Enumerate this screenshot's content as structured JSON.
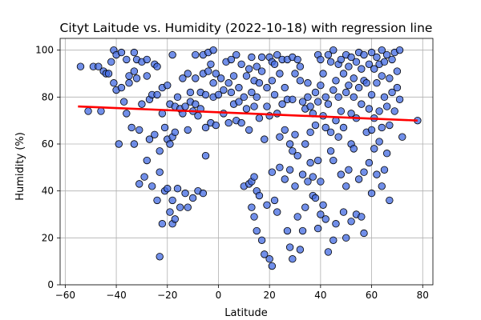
{
  "chart_data": {
    "type": "scatter",
    "title": "Cityt Laitude vs. Humidity (2022-10-18) with regression line",
    "xlabel": "Latitude",
    "ylabel": "Humidity (%)",
    "xlim": [
      -62,
      84
    ],
    "ylim": [
      0,
      105
    ],
    "xticks": [
      -60,
      -40,
      -20,
      0,
      20,
      40,
      60,
      80
    ],
    "yticks": [
      0,
      20,
      40,
      60,
      80,
      100
    ],
    "grid": true,
    "point_color": "#4169e1",
    "line_color": "#ff0000",
    "regression": {
      "x": [
        -55,
        78
      ],
      "y": [
        76,
        70
      ]
    },
    "points": [
      [
        -54,
        93
      ],
      [
        -51,
        74
      ],
      [
        -49,
        93
      ],
      [
        -47,
        93
      ],
      [
        -46,
        74
      ],
      [
        -45,
        91
      ],
      [
        -44,
        90
      ],
      [
        -43,
        90
      ],
      [
        -42,
        95
      ],
      [
        -41,
        86
      ],
      [
        -41,
        100
      ],
      [
        -40,
        98
      ],
      [
        -40,
        83
      ],
      [
        -39,
        60
      ],
      [
        -38,
        99
      ],
      [
        -38,
        84
      ],
      [
        -37,
        78
      ],
      [
        -36,
        96
      ],
      [
        -36,
        73
      ],
      [
        -35,
        89
      ],
      [
        -35,
        86
      ],
      [
        -34,
        67
      ],
      [
        -33,
        99
      ],
      [
        -33,
        91
      ],
      [
        -33,
        60
      ],
      [
        -32,
        96
      ],
      [
        -32,
        88
      ],
      [
        -31,
        66
      ],
      [
        -31,
        43
      ],
      [
        -30,
        95
      ],
      [
        -30,
        77
      ],
      [
        -29,
        46
      ],
      [
        -28,
        96
      ],
      [
        -28,
        89
      ],
      [
        -28,
        53
      ],
      [
        -27,
        79
      ],
      [
        -27,
        62
      ],
      [
        -26,
        81
      ],
      [
        -26,
        42
      ],
      [
        -25,
        94
      ],
      [
        -25,
        64
      ],
      [
        -24,
        93
      ],
      [
        -24,
        81
      ],
      [
        -24,
        36
      ],
      [
        -23,
        57
      ],
      [
        -23,
        48
      ],
      [
        -23,
        12
      ],
      [
        -22,
        84
      ],
      [
        -22,
        73
      ],
      [
        -22,
        26
      ],
      [
        -21,
        67
      ],
      [
        -21,
        40
      ],
      [
        -20,
        85
      ],
      [
        -20,
        62
      ],
      [
        -20,
        41
      ],
      [
        -19,
        77
      ],
      [
        -19,
        60
      ],
      [
        -19,
        31
      ],
      [
        -18,
        98
      ],
      [
        -18,
        63
      ],
      [
        -18,
        36
      ],
      [
        -18,
        26
      ],
      [
        -17,
        76
      ],
      [
        -17,
        65
      ],
      [
        -17,
        28
      ],
      [
        -16,
        80
      ],
      [
        -16,
        41
      ],
      [
        -15,
        75
      ],
      [
        -15,
        33
      ],
      [
        -14,
        88
      ],
      [
        -14,
        73
      ],
      [
        -13,
        76
      ],
      [
        -13,
        39
      ],
      [
        -12,
        90
      ],
      [
        -12,
        66
      ],
      [
        -12,
        33
      ],
      [
        -11,
        82
      ],
      [
        -11,
        78
      ],
      [
        -10,
        74
      ],
      [
        -10,
        37
      ],
      [
        -9,
        98
      ],
      [
        -9,
        88
      ],
      [
        -9,
        77
      ],
      [
        -8,
        72
      ],
      [
        -8,
        40
      ],
      [
        -7,
        82
      ],
      [
        -7,
        75
      ],
      [
        -6,
        98
      ],
      [
        -6,
        90
      ],
      [
        -6,
        39
      ],
      [
        -5,
        81
      ],
      [
        -5,
        67
      ],
      [
        -5,
        55
      ],
      [
        -4,
        99
      ],
      [
        -4,
        91
      ],
      [
        -3,
        94
      ],
      [
        -3,
        69
      ],
      [
        -2,
        100
      ],
      [
        -2,
        86
      ],
      [
        -2,
        80
      ],
      [
        -1,
        90
      ],
      [
        -1,
        68
      ],
      [
        0,
        81
      ],
      [
        1,
        88
      ],
      [
        2,
        83
      ],
      [
        2,
        73
      ],
      [
        3,
        95
      ],
      [
        4,
        86
      ],
      [
        4,
        69
      ],
      [
        5,
        96
      ],
      [
        5,
        82
      ],
      [
        6,
        89
      ],
      [
        6,
        77
      ],
      [
        7,
        98
      ],
      [
        7,
        70
      ],
      [
        8,
        84
      ],
      [
        8,
        78
      ],
      [
        9,
        94
      ],
      [
        9,
        69
      ],
      [
        10,
        80
      ],
      [
        10,
        42
      ],
      [
        11,
        89
      ],
      [
        11,
        75
      ],
      [
        12,
        92
      ],
      [
        12,
        66
      ],
      [
        12,
        43
      ],
      [
        13,
        97
      ],
      [
        13,
        82
      ],
      [
        13,
        44
      ],
      [
        13,
        33
      ],
      [
        14,
        87
      ],
      [
        14,
        76
      ],
      [
        14,
        46
      ],
      [
        14,
        29
      ],
      [
        15,
        93
      ],
      [
        15,
        80
      ],
      [
        15,
        40
      ],
      [
        15,
        23
      ],
      [
        16,
        86
      ],
      [
        16,
        71
      ],
      [
        16,
        38
      ],
      [
        17,
        97
      ],
      [
        17,
        91
      ],
      [
        17,
        19
      ],
      [
        18,
        62
      ],
      [
        18,
        13
      ],
      [
        19,
        84
      ],
      [
        19,
        76
      ],
      [
        19,
        34
      ],
      [
        20,
        97
      ],
      [
        20,
        72
      ],
      [
        20,
        11
      ],
      [
        21,
        95
      ],
      [
        21,
        87
      ],
      [
        21,
        48
      ],
      [
        21,
        8
      ],
      [
        22,
        94
      ],
      [
        22,
        81
      ],
      [
        22,
        36
      ],
      [
        23,
        98
      ],
      [
        23,
        73
      ],
      [
        23,
        31
      ],
      [
        24,
        90
      ],
      [
        24,
        63
      ],
      [
        24,
        50
      ],
      [
        25,
        96
      ],
      [
        25,
        77
      ],
      [
        26,
        84
      ],
      [
        26,
        66
      ],
      [
        26,
        45
      ],
      [
        27,
        96
      ],
      [
        27,
        79
      ],
      [
        27,
        23
      ],
      [
        28,
        60
      ],
      [
        28,
        49
      ],
      [
        28,
        16
      ],
      [
        29,
        97
      ],
      [
        29,
        79
      ],
      [
        29,
        57
      ],
      [
        29,
        11
      ],
      [
        30,
        90
      ],
      [
        30,
        64
      ],
      [
        30,
        42
      ],
      [
        31,
        96
      ],
      [
        31,
        55
      ],
      [
        31,
        29
      ],
      [
        32,
        93
      ],
      [
        32,
        87
      ],
      [
        32,
        15
      ],
      [
        33,
        78
      ],
      [
        33,
        47
      ],
      [
        33,
        23
      ],
      [
        34,
        75
      ],
      [
        34,
        60
      ],
      [
        34,
        33
      ],
      [
        35,
        86
      ],
      [
        35,
        80
      ],
      [
        35,
        44
      ],
      [
        36,
        76
      ],
      [
        36,
        65
      ],
      [
        36,
        52
      ],
      [
        37,
        73
      ],
      [
        37,
        46
      ],
      [
        37,
        38
      ],
      [
        38,
        82
      ],
      [
        38,
        68
      ],
      [
        38,
        37
      ],
      [
        39,
        98
      ],
      [
        39,
        78
      ],
      [
        39,
        53
      ],
      [
        39,
        24
      ],
      [
        40,
        96
      ],
      [
        40,
        85
      ],
      [
        40,
        44
      ],
      [
        40,
        30
      ],
      [
        41,
        90
      ],
      [
        41,
        72
      ],
      [
        41,
        34
      ],
      [
        42,
        80
      ],
      [
        42,
        67
      ],
      [
        42,
        28
      ],
      [
        43,
        98
      ],
      [
        43,
        77
      ],
      [
        43,
        14
      ],
      [
        44,
        95
      ],
      [
        44,
        65
      ],
      [
        44,
        57
      ],
      [
        45,
        100
      ],
      [
        45,
        83
      ],
      [
        45,
        53
      ],
      [
        45,
        19
      ],
      [
        46,
        87
      ],
      [
        46,
        70
      ],
      [
        46,
        26
      ],
      [
        47,
        94
      ],
      [
        47,
        80
      ],
      [
        47,
        63
      ],
      [
        48,
        96
      ],
      [
        48,
        74
      ],
      [
        48,
        47
      ],
      [
        49,
        90
      ],
      [
        49,
        67
      ],
      [
        49,
        31
      ],
      [
        50,
        98
      ],
      [
        50,
        82
      ],
      [
        50,
        42
      ],
      [
        50,
        20
      ],
      [
        51,
        93
      ],
      [
        51,
        85
      ],
      [
        51,
        49
      ],
      [
        52,
        97
      ],
      [
        52,
        73
      ],
      [
        52,
        60
      ],
      [
        52,
        27
      ],
      [
        53,
        88
      ],
      [
        53,
        80
      ],
      [
        53,
        58
      ],
      [
        54,
        95
      ],
      [
        54,
        71
      ],
      [
        54,
        30
      ],
      [
        55,
        99
      ],
      [
        55,
        84
      ],
      [
        55,
        45
      ],
      [
        56,
        92
      ],
      [
        56,
        77
      ],
      [
        56,
        29
      ],
      [
        57,
        98
      ],
      [
        57,
        87
      ],
      [
        57,
        48
      ],
      [
        57,
        22
      ],
      [
        58,
        86
      ],
      [
        58,
        65
      ],
      [
        59,
        94
      ],
      [
        59,
        75
      ],
      [
        59,
        52
      ],
      [
        60,
        99
      ],
      [
        60,
        81
      ],
      [
        60,
        66
      ],
      [
        60,
        39
      ],
      [
        61,
        92
      ],
      [
        61,
        71
      ],
      [
        61,
        58
      ],
      [
        62,
        97
      ],
      [
        62,
        86
      ],
      [
        62,
        47
      ],
      [
        63,
        94
      ],
      [
        63,
        74
      ],
      [
        63,
        61
      ],
      [
        64,
        100
      ],
      [
        64,
        89
      ],
      [
        64,
        67
      ],
      [
        64,
        42
      ],
      [
        65,
        95
      ],
      [
        65,
        80
      ],
      [
        65,
        49
      ],
      [
        66,
        98
      ],
      [
        66,
        76
      ],
      [
        66,
        56
      ],
      [
        67,
        88
      ],
      [
        67,
        68
      ],
      [
        67,
        36
      ],
      [
        68,
        96
      ],
      [
        68,
        82
      ],
      [
        69,
        99
      ],
      [
        69,
        74
      ],
      [
        70,
        91
      ],
      [
        70,
        84
      ],
      [
        71,
        100
      ],
      [
        71,
        79
      ],
      [
        72,
        63
      ],
      [
        78,
        70
      ]
    ]
  }
}
